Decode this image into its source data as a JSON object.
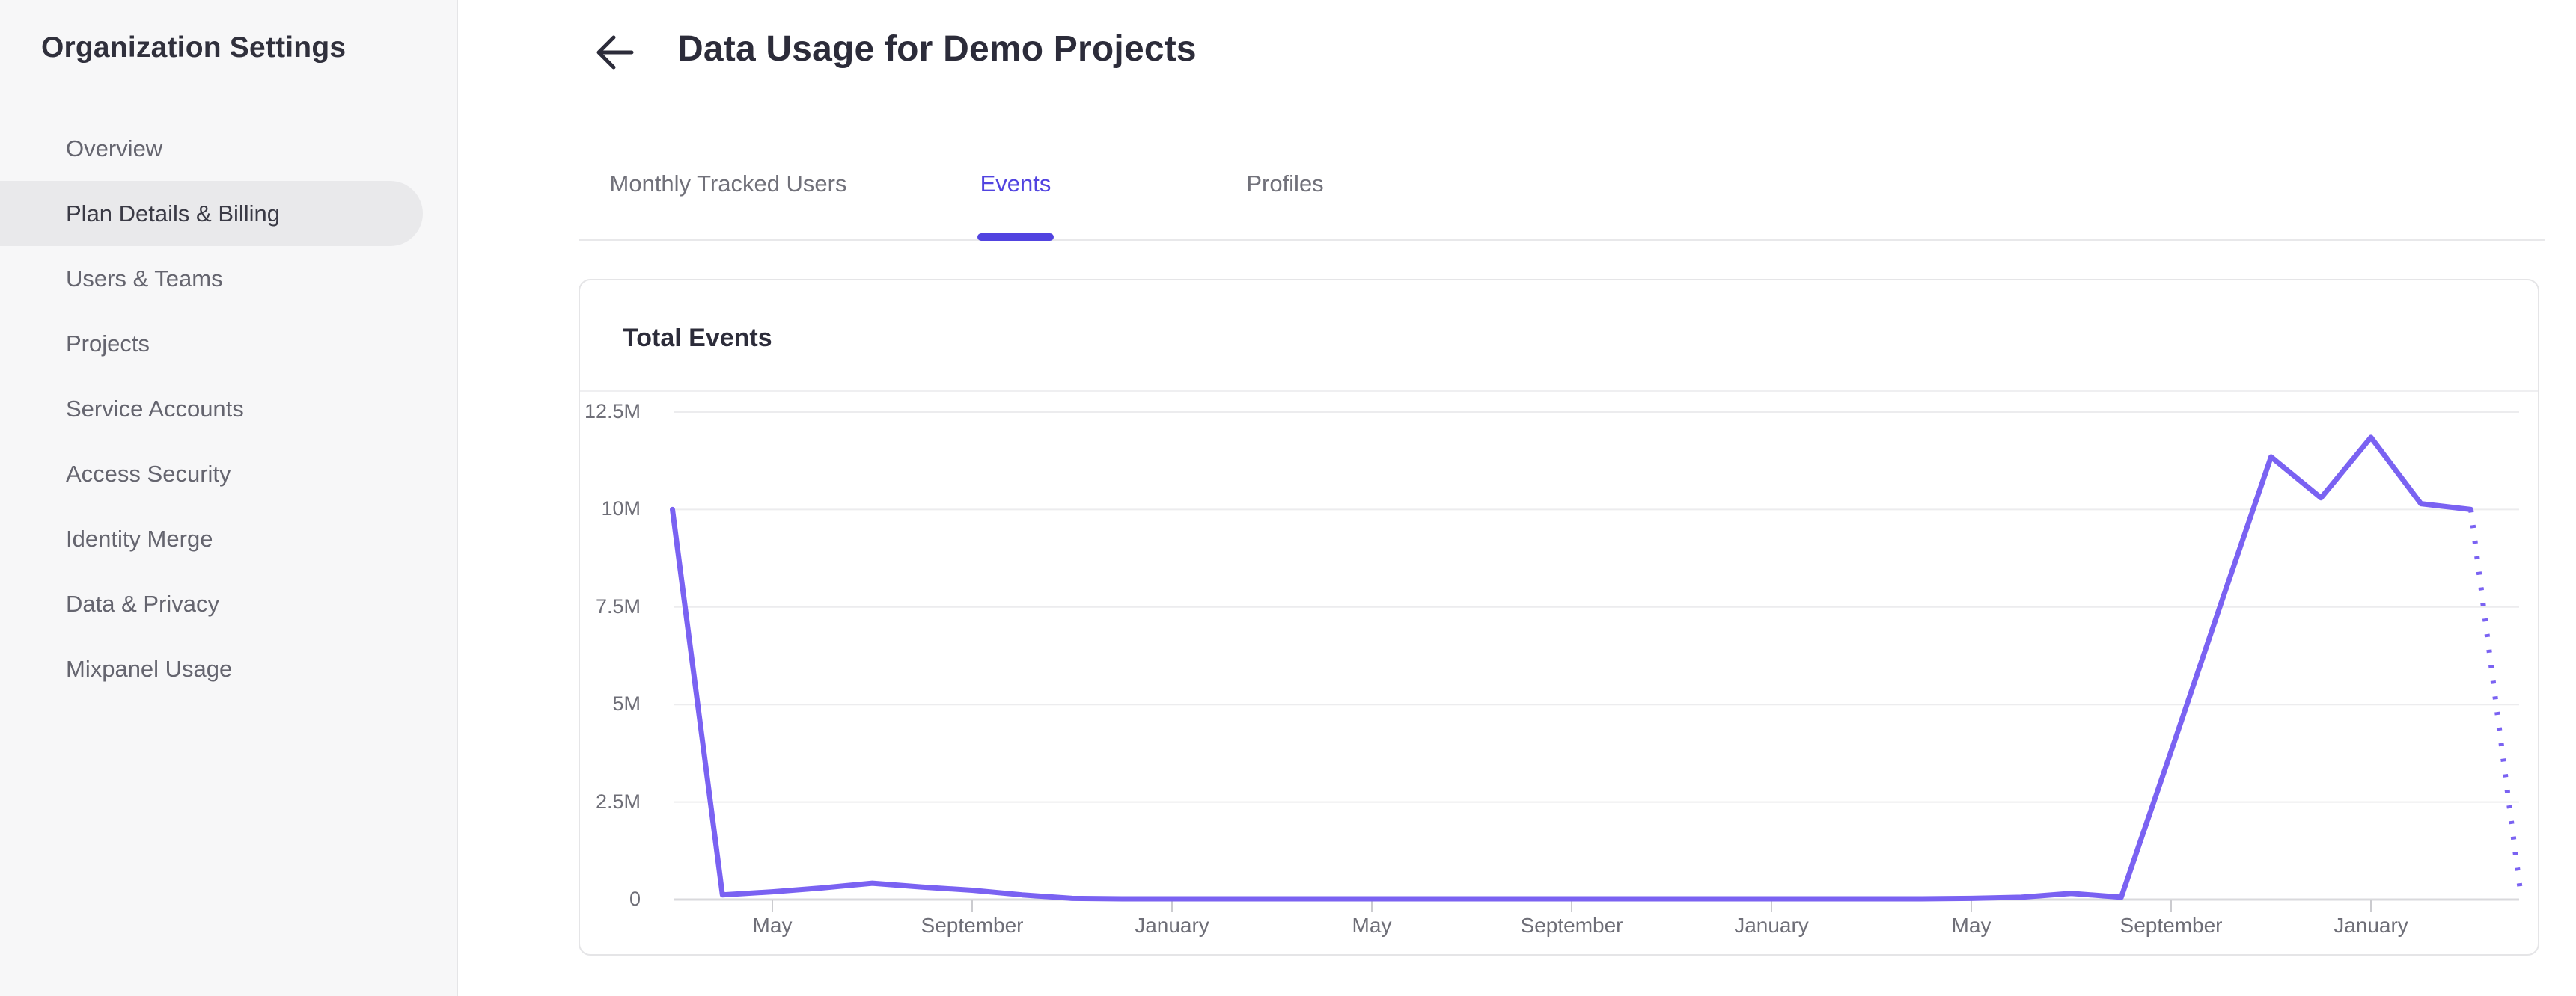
{
  "sidebar": {
    "title": "Organization Settings",
    "items": [
      {
        "label": "Overview",
        "selected": false
      },
      {
        "label": "Plan Details & Billing",
        "selected": true
      },
      {
        "label": "Users & Teams",
        "selected": false
      },
      {
        "label": "Projects",
        "selected": false
      },
      {
        "label": "Service Accounts",
        "selected": false
      },
      {
        "label": "Access Security",
        "selected": false
      },
      {
        "label": "Identity Merge",
        "selected": false
      },
      {
        "label": "Data & Privacy",
        "selected": false
      },
      {
        "label": "Mixpanel Usage",
        "selected": false
      }
    ]
  },
  "header": {
    "title": "Data Usage for Demo Projects",
    "back_icon": "arrow-left"
  },
  "tabs": {
    "items": [
      {
        "label": "Monthly Tracked Users",
        "active": false
      },
      {
        "label": "Events",
        "active": true
      },
      {
        "label": "Profiles",
        "active": false
      }
    ]
  },
  "colors": {
    "accent": "#5143E0",
    "chart_line": "#7A62F2",
    "gridline": "#ECECEE",
    "axis_line": "#D9D9DC",
    "tick": "#CBCBCF",
    "axis_label": "#6E6E77"
  },
  "chart_data": {
    "type": "line",
    "title": "Total Events",
    "ylabel": "",
    "xlabel": "",
    "ylim_millions": [
      0,
      12.5
    ],
    "grid": "horizontal",
    "legend": "none",
    "y_ticks": [
      {
        "value_millions": 0,
        "label": "0"
      },
      {
        "value_millions": 2.5,
        "label": "2.5M"
      },
      {
        "value_millions": 5,
        "label": "5M"
      },
      {
        "value_millions": 7.5,
        "label": "7.5M"
      },
      {
        "value_millions": 10,
        "label": "10M"
      },
      {
        "value_millions": 12.5,
        "label": "12.5M"
      }
    ],
    "x_ticks": [
      {
        "index": 2,
        "label": "May"
      },
      {
        "index": 6,
        "label": "September"
      },
      {
        "index": 10,
        "label": "January"
      },
      {
        "index": 14,
        "label": "May"
      },
      {
        "index": 18,
        "label": "September"
      },
      {
        "index": 22,
        "label": "January"
      },
      {
        "index": 26,
        "label": "May"
      },
      {
        "index": 30,
        "label": "September"
      },
      {
        "index": 34,
        "label": "January"
      }
    ],
    "series": [
      {
        "name": "Total Events",
        "interval": "monthly",
        "values_millions": [
          10.0,
          0.12,
          0.2,
          0.3,
          0.42,
          0.32,
          0.24,
          0.12,
          0.03,
          0.02,
          0.02,
          0.02,
          0.02,
          0.02,
          0.02,
          0.02,
          0.02,
          0.02,
          0.02,
          0.02,
          0.02,
          0.02,
          0.02,
          0.02,
          0.02,
          0.02,
          0.03,
          0.06,
          0.16,
          0.06,
          3.8,
          7.6,
          11.35,
          10.3,
          11.85,
          10.15,
          10.0,
          0.12
        ],
        "dotted_from_index": 36
      }
    ]
  }
}
